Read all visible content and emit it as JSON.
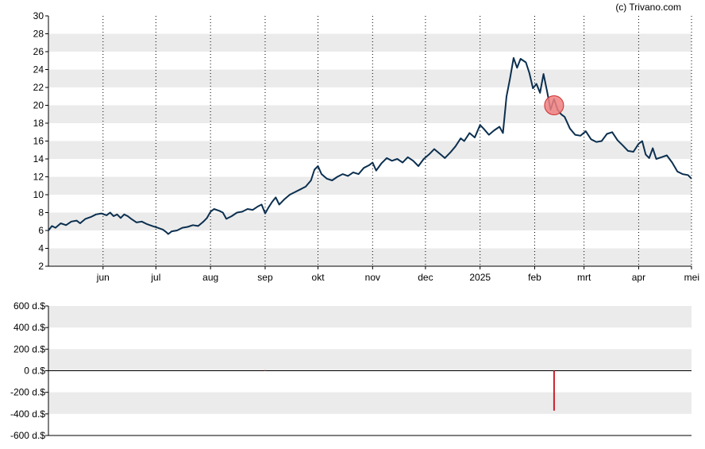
{
  "credit": "(c) Trivano.com",
  "colors": {
    "band": "#ebebeb",
    "price_line": "#0b2f4f",
    "highlight_fill": "#f08080",
    "highlight_stroke": "#cc2e2e",
    "volume_bar": "#cc1f2b",
    "axis": "#000000"
  },
  "chart_data": [
    {
      "type": "line",
      "title": "",
      "xlabel": "",
      "ylabel": "",
      "ylim": [
        2,
        30
      ],
      "y_ticks": [
        2,
        4,
        6,
        8,
        10,
        12,
        14,
        16,
        18,
        20,
        22,
        24,
        26,
        28,
        30
      ],
      "x_range": [
        "2024-05-01",
        "2025-05-01"
      ],
      "x_ticks": [
        {
          "date": "2024-06-01",
          "label": "jun"
        },
        {
          "date": "2024-07-01",
          "label": "jul"
        },
        {
          "date": "2024-08-01",
          "label": "aug"
        },
        {
          "date": "2024-09-01",
          "label": "sep"
        },
        {
          "date": "2024-10-01",
          "label": "okt"
        },
        {
          "date": "2024-11-01",
          "label": "nov"
        },
        {
          "date": "2024-12-01",
          "label": "dec"
        },
        {
          "date": "2025-01-01",
          "label": "2025"
        },
        {
          "date": "2025-02-01",
          "label": "feb"
        },
        {
          "date": "2025-03-01",
          "label": "mrt"
        },
        {
          "date": "2025-04-01",
          "label": "apr"
        },
        {
          "date": "2025-05-01",
          "label": "mei"
        }
      ],
      "grid": "alternating horizontal bands, dotted vertical lines at month ticks",
      "series": [
        {
          "points": [
            [
              "2024-05-01",
              6.0
            ],
            [
              "2024-05-03",
              6.5
            ],
            [
              "2024-05-05",
              6.3
            ],
            [
              "2024-05-08",
              6.8
            ],
            [
              "2024-05-11",
              6.6
            ],
            [
              "2024-05-14",
              7.0
            ],
            [
              "2024-05-17",
              7.1
            ],
            [
              "2024-05-19",
              6.8
            ],
            [
              "2024-05-22",
              7.3
            ],
            [
              "2024-05-25",
              7.5
            ],
            [
              "2024-05-28",
              7.8
            ],
            [
              "2024-05-31",
              7.9
            ],
            [
              "2024-06-03",
              7.7
            ],
            [
              "2024-06-05",
              8.0
            ],
            [
              "2024-06-07",
              7.6
            ],
            [
              "2024-06-09",
              7.8
            ],
            [
              "2024-06-11",
              7.4
            ],
            [
              "2024-06-13",
              7.8
            ],
            [
              "2024-06-15",
              7.6
            ],
            [
              "2024-06-17",
              7.3
            ],
            [
              "2024-06-20",
              6.9
            ],
            [
              "2024-06-23",
              7.0
            ],
            [
              "2024-06-26",
              6.7
            ],
            [
              "2024-06-29",
              6.5
            ],
            [
              "2024-07-02",
              6.3
            ],
            [
              "2024-07-05",
              6.1
            ],
            [
              "2024-07-07",
              5.8
            ],
            [
              "2024-07-08",
              5.6
            ],
            [
              "2024-07-10",
              5.9
            ],
            [
              "2024-07-13",
              6.0
            ],
            [
              "2024-07-16",
              6.3
            ],
            [
              "2024-07-19",
              6.4
            ],
            [
              "2024-07-22",
              6.6
            ],
            [
              "2024-07-25",
              6.5
            ],
            [
              "2024-07-28",
              7.0
            ],
            [
              "2024-07-30",
              7.4
            ],
            [
              "2024-08-01",
              8.1
            ],
            [
              "2024-08-03",
              8.4
            ],
            [
              "2024-08-06",
              8.2
            ],
            [
              "2024-08-08",
              8.0
            ],
            [
              "2024-08-10",
              7.3
            ],
            [
              "2024-08-13",
              7.6
            ],
            [
              "2024-08-16",
              8.0
            ],
            [
              "2024-08-19",
              8.1
            ],
            [
              "2024-08-22",
              8.4
            ],
            [
              "2024-08-25",
              8.3
            ],
            [
              "2024-08-28",
              8.7
            ],
            [
              "2024-08-30",
              8.9
            ],
            [
              "2024-09-01",
              7.9
            ],
            [
              "2024-09-03",
              8.6
            ],
            [
              "2024-09-05",
              9.2
            ],
            [
              "2024-09-07",
              9.7
            ],
            [
              "2024-09-09",
              8.9
            ],
            [
              "2024-09-12",
              9.5
            ],
            [
              "2024-09-15",
              10.0
            ],
            [
              "2024-09-18",
              10.3
            ],
            [
              "2024-09-21",
              10.6
            ],
            [
              "2024-09-24",
              10.9
            ],
            [
              "2024-09-27",
              11.6
            ],
            [
              "2024-09-29",
              12.8
            ],
            [
              "2024-10-01",
              13.2
            ],
            [
              "2024-10-03",
              12.3
            ],
            [
              "2024-10-06",
              11.8
            ],
            [
              "2024-10-09",
              11.6
            ],
            [
              "2024-10-12",
              12.0
            ],
            [
              "2024-10-15",
              12.3
            ],
            [
              "2024-10-18",
              12.1
            ],
            [
              "2024-10-21",
              12.5
            ],
            [
              "2024-10-24",
              12.3
            ],
            [
              "2024-10-27",
              13.0
            ],
            [
              "2024-10-30",
              13.3
            ],
            [
              "2024-11-01",
              13.6
            ],
            [
              "2024-11-03",
              12.7
            ],
            [
              "2024-11-06",
              13.5
            ],
            [
              "2024-11-09",
              14.1
            ],
            [
              "2024-11-12",
              13.8
            ],
            [
              "2024-11-15",
              14.0
            ],
            [
              "2024-11-18",
              13.6
            ],
            [
              "2024-11-21",
              14.2
            ],
            [
              "2024-11-24",
              13.8
            ],
            [
              "2024-11-27",
              13.2
            ],
            [
              "2024-11-30",
              14.0
            ],
            [
              "2024-12-03",
              14.5
            ],
            [
              "2024-12-06",
              15.1
            ],
            [
              "2024-12-09",
              14.6
            ],
            [
              "2024-12-12",
              14.1
            ],
            [
              "2024-12-15",
              14.7
            ],
            [
              "2024-12-18",
              15.4
            ],
            [
              "2024-12-21",
              16.3
            ],
            [
              "2024-12-23",
              16.0
            ],
            [
              "2024-12-26",
              16.9
            ],
            [
              "2024-12-29",
              16.4
            ],
            [
              "2025-01-01",
              17.8
            ],
            [
              "2025-01-03",
              17.4
            ],
            [
              "2025-01-06",
              16.7
            ],
            [
              "2025-01-09",
              17.2
            ],
            [
              "2025-01-12",
              17.6
            ],
            [
              "2025-01-14",
              16.9
            ],
            [
              "2025-01-16",
              21.0
            ],
            [
              "2025-01-18",
              23.0
            ],
            [
              "2025-01-20",
              25.3
            ],
            [
              "2025-01-22",
              24.2
            ],
            [
              "2025-01-24",
              25.2
            ],
            [
              "2025-01-27",
              24.8
            ],
            [
              "2025-01-29",
              23.6
            ],
            [
              "2025-01-31",
              21.9
            ],
            [
              "2025-02-02",
              22.4
            ],
            [
              "2025-02-04",
              21.4
            ],
            [
              "2025-02-06",
              23.5
            ],
            [
              "2025-02-08",
              21.6
            ],
            [
              "2025-02-10",
              19.5
            ],
            [
              "2025-02-12",
              20.7
            ],
            [
              "2025-02-14",
              19.5
            ],
            [
              "2025-02-16",
              19.0
            ],
            [
              "2025-02-18",
              18.7
            ],
            [
              "2025-02-21",
              17.4
            ],
            [
              "2025-02-24",
              16.7
            ],
            [
              "2025-02-27",
              16.6
            ],
            [
              "2025-03-02",
              17.1
            ],
            [
              "2025-03-05",
              16.2
            ],
            [
              "2025-03-08",
              15.9
            ],
            [
              "2025-03-11",
              16.0
            ],
            [
              "2025-03-14",
              16.8
            ],
            [
              "2025-03-17",
              17.0
            ],
            [
              "2025-03-20",
              16.1
            ],
            [
              "2025-03-23",
              15.5
            ],
            [
              "2025-03-26",
              14.9
            ],
            [
              "2025-03-29",
              14.8
            ],
            [
              "2025-04-01",
              15.7
            ],
            [
              "2025-04-03",
              16.0
            ],
            [
              "2025-04-05",
              14.5
            ],
            [
              "2025-04-07",
              14.1
            ],
            [
              "2025-04-09",
              15.2
            ],
            [
              "2025-04-11",
              14.0
            ],
            [
              "2025-04-14",
              14.2
            ],
            [
              "2025-04-17",
              14.4
            ],
            [
              "2025-04-20",
              13.6
            ],
            [
              "2025-04-23",
              12.6
            ],
            [
              "2025-04-26",
              12.3
            ],
            [
              "2025-04-29",
              12.2
            ],
            [
              "2025-05-01",
              11.8
            ]
          ]
        }
      ],
      "highlight_marker": {
        "date": "2025-02-12",
        "value": 20.0
      }
    },
    {
      "type": "bar",
      "title": "",
      "xlabel": "",
      "ylabel": "",
      "ylim": [
        -600,
        600
      ],
      "y_ticks": [
        600,
        400,
        200,
        0,
        -200,
        -400,
        -600
      ],
      "y_tick_labels": [
        "600 d.$",
        "400 d.$",
        "200 d.$",
        "0 d.$",
        "-200 d.$",
        "-400 d.$",
        "-600 d.$"
      ],
      "x_range": [
        "2024-05-01",
        "2025-05-01"
      ],
      "grid": "alternating horizontal bands",
      "series": [
        {
          "points": [
            [
              "2024-09-01",
              5
            ],
            [
              "2025-02-12",
              -370
            ]
          ]
        }
      ]
    }
  ]
}
